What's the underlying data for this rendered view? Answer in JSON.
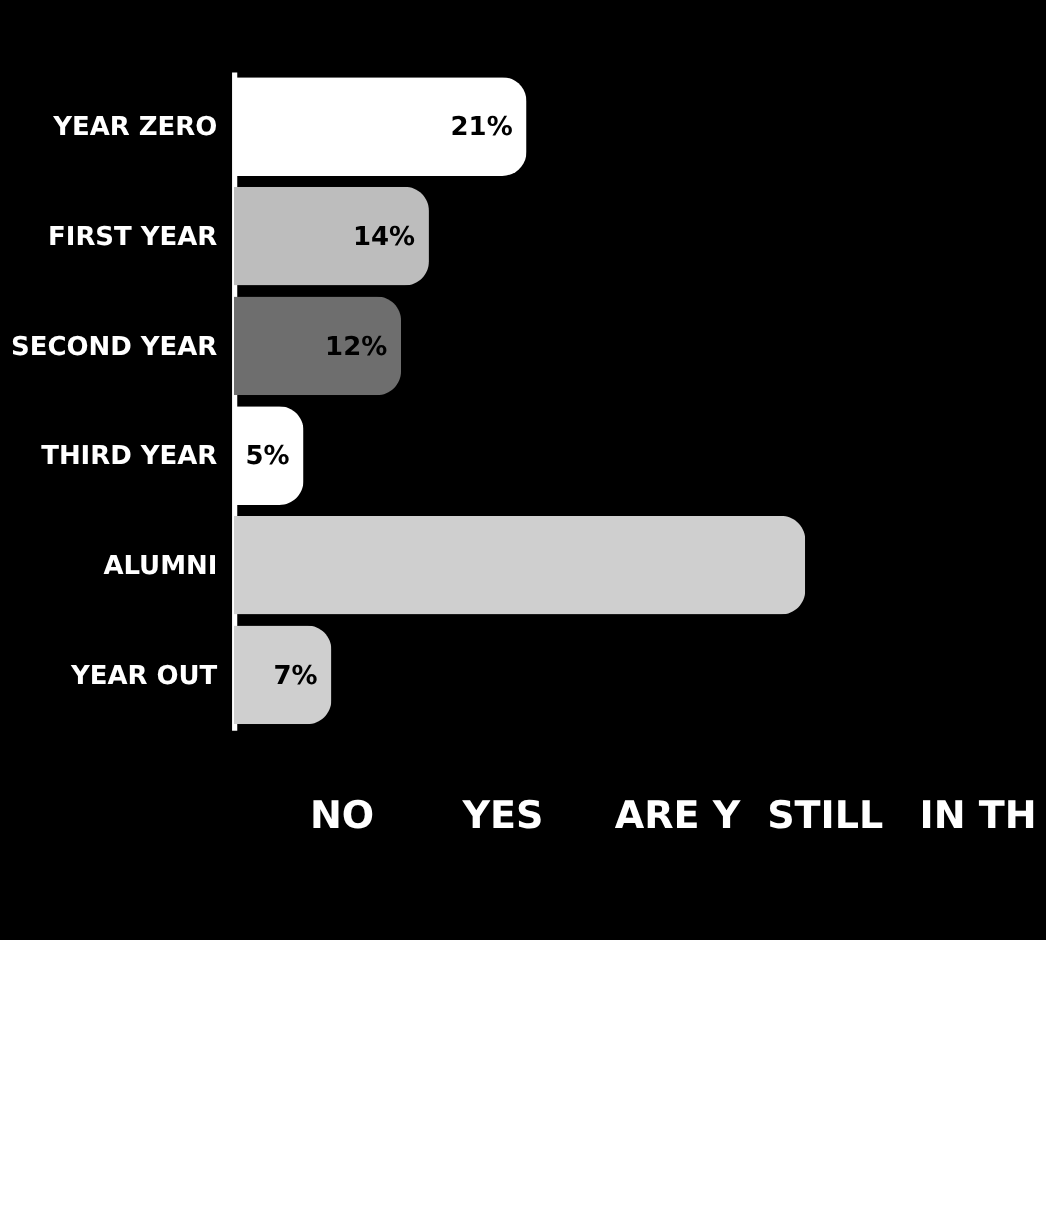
{
  "chart_data": {
    "type": "bar",
    "orientation": "horizontal",
    "categories": [
      "YEAR ZERO",
      "FIRST YEAR",
      "SECOND YEAR",
      "THIRD YEAR",
      "ALUMNI",
      "YEAR OUT"
    ],
    "values": [
      21,
      14,
      12,
      5,
      41,
      7
    ],
    "value_labels": [
      "21%",
      "14%",
      "12%",
      "5%",
      null,
      "7%"
    ],
    "colors": [
      "#ffffff",
      "#bdbdbd",
      "#6e6e6e",
      "#ffffff",
      "#cfcfcf",
      "#cfcfcf"
    ],
    "annotations": [
      "NO",
      "YES",
      "ARE Y",
      "STILL",
      "IN TH"
    ]
  }
}
